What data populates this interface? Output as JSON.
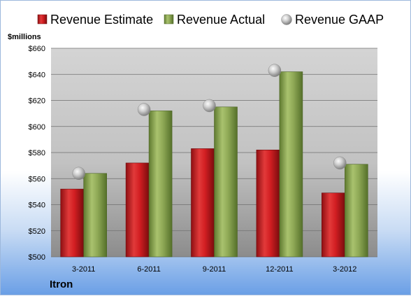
{
  "chart_data": {
    "type": "bar",
    "categories": [
      "3-2011",
      "6-2011",
      "9-2011",
      "12-2011",
      "3-2012"
    ],
    "series": [
      {
        "name": "Revenue Estimate",
        "values": [
          552,
          572,
          583,
          582,
          549
        ],
        "color": "#cc1b1b"
      },
      {
        "name": "Revenue Actual",
        "values": [
          564,
          612,
          615,
          642,
          571
        ],
        "color": "#8aa650"
      },
      {
        "name": "Revenue GAAP",
        "values": [
          564,
          613,
          616,
          643,
          572
        ],
        "color": "#b9b9b9",
        "marker": "sphere"
      }
    ],
    "ylabel": "$millions",
    "ylim": [
      500,
      660
    ],
    "yticks": [
      "$500",
      "$520",
      "$540",
      "$560",
      "$580",
      "$600",
      "$620",
      "$640",
      "$660"
    ],
    "grid": true,
    "legend_position": "top"
  },
  "company": "Itron"
}
